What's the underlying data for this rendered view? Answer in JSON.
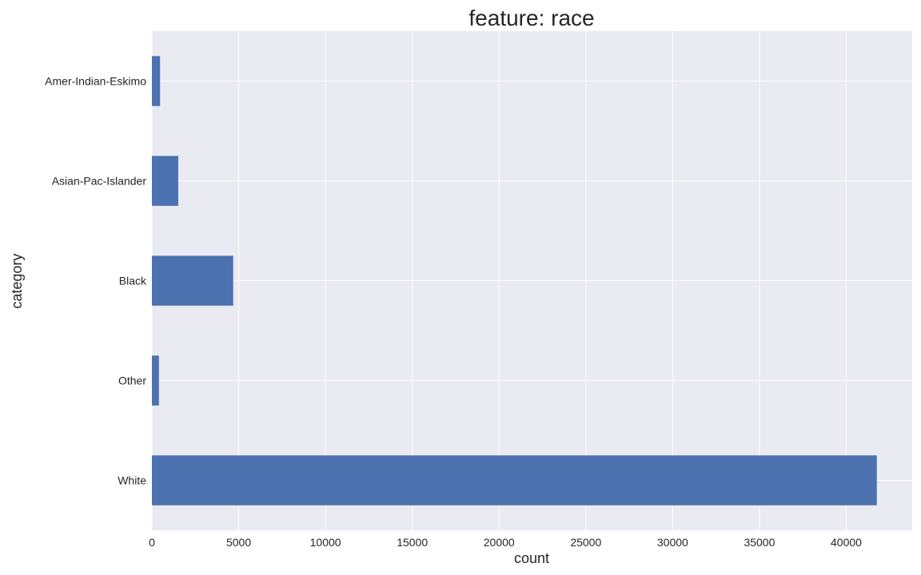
{
  "chart_data": {
    "type": "bar",
    "orientation": "horizontal",
    "title": "feature: race",
    "xlabel": "count",
    "ylabel": "category",
    "categories": [
      "Amer-Indian-Eskimo",
      "Asian-Pac-Islander",
      "Black",
      "Other",
      "White"
    ],
    "values": [
      470,
      1519,
      4685,
      406,
      41762
    ],
    "xlim": [
      0,
      43800
    ],
    "xticks": [
      0,
      5000,
      10000,
      15000,
      20000,
      25000,
      30000,
      35000,
      40000
    ],
    "grid": true,
    "legend": "none",
    "colors": {
      "bar": "#4c72b0",
      "plot_background": "#eaeaf2",
      "grid": "#ffffff",
      "text": "#262626"
    }
  }
}
